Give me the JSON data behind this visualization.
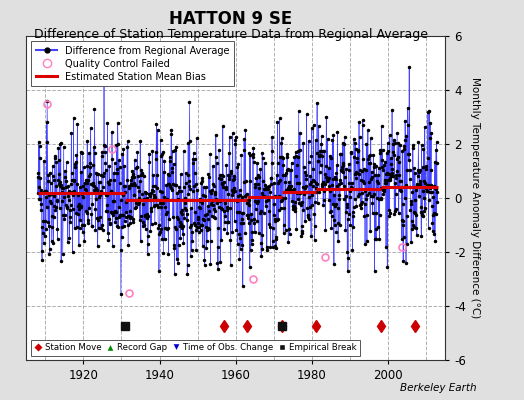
{
  "title": "HATTON 9 SE",
  "subtitle": "Difference of Station Temperature Data from Regional Average",
  "ylabel": "Monthly Temperature Anomaly Difference (°C)",
  "xlabel_years": [
    1920,
    1940,
    1960,
    1980,
    2000
  ],
  "ylim": [
    -6,
    6
  ],
  "xlim": [
    1905,
    2015
  ],
  "background_color": "#e0e0e0",
  "plot_bg_color": "#ffffff",
  "grid_color": "#b0b0b0",
  "seed": 42,
  "start_year": 1908,
  "end_year": 2013,
  "bias_segments": [
    {
      "x_start": 1908,
      "x_end": 1931,
      "bias": 0.18
    },
    {
      "x_start": 1931,
      "x_end": 1957,
      "bias": -0.08
    },
    {
      "x_start": 1957,
      "x_end": 1963,
      "bias": -0.08
    },
    {
      "x_start": 1963,
      "x_end": 1972,
      "bias": 0.05
    },
    {
      "x_start": 1972,
      "x_end": 1981,
      "bias": 0.22
    },
    {
      "x_start": 1981,
      "x_end": 1998,
      "bias": 0.32
    },
    {
      "x_start": 1998,
      "x_end": 2013,
      "bias": 0.42
    }
  ],
  "station_moves": [
    1957,
    1963,
    1972,
    1981,
    1998,
    2007
  ],
  "empirical_breaks": [
    1931,
    1972
  ],
  "qc_failed": [
    {
      "year": 1910.5,
      "y": 3.5
    },
    {
      "year": 1927.5,
      "y": 1.8
    },
    {
      "year": 1932.0,
      "y": -3.5
    },
    {
      "year": 1964.5,
      "y": -3.0
    },
    {
      "year": 1983.5,
      "y": -2.2
    },
    {
      "year": 2003.5,
      "y": -1.8
    }
  ],
  "line_color": "#4444ff",
  "bias_color": "#dd0000",
  "marker_color": "#000000",
  "station_move_color": "#cc0000",
  "record_gap_color": "#008800",
  "obs_change_color": "#0000cc",
  "empirical_break_color": "#111111",
  "qc_color": "#ff80c0",
  "berkeley_earth_text": "Berkeley Earth",
  "title_fontsize": 12,
  "subtitle_fontsize": 9,
  "ylabel_fontsize": 7.5,
  "tick_fontsize": 8.5
}
